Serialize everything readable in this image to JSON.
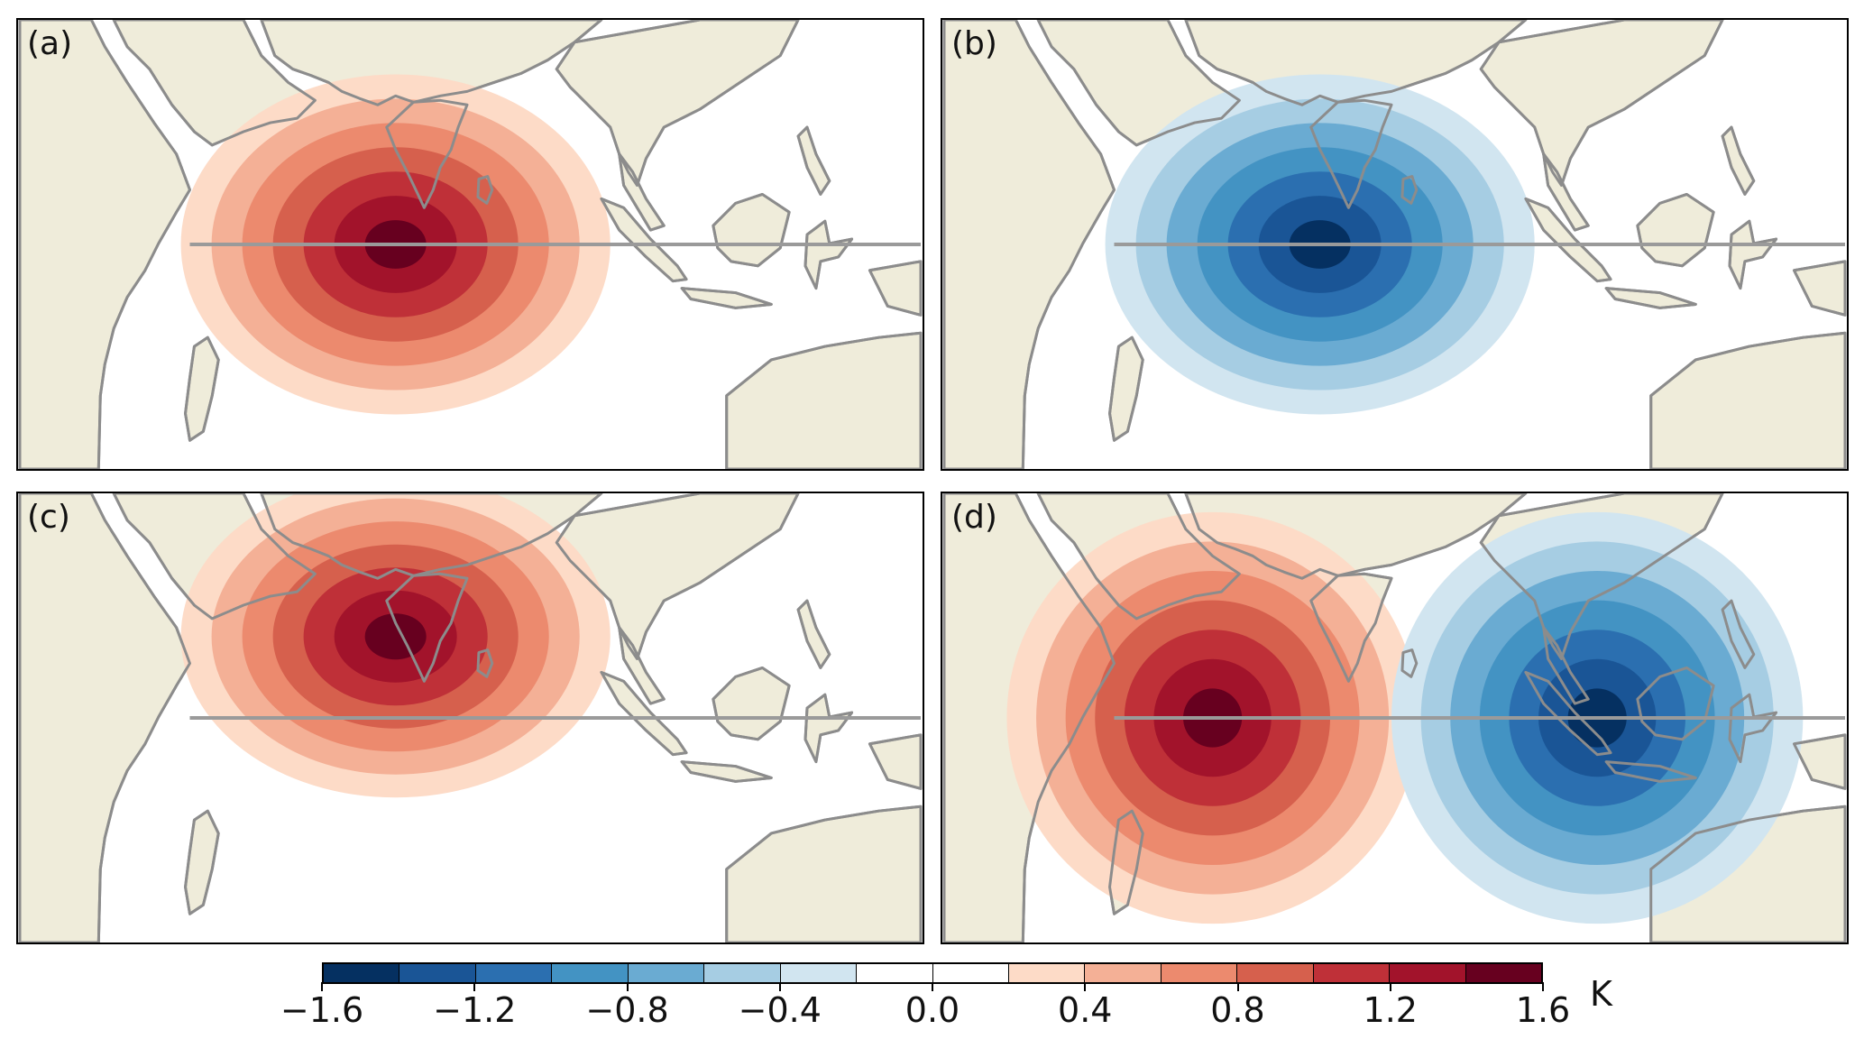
{
  "panels": [
    {
      "id": "a",
      "label": "(a)",
      "anomalies": [
        {
          "sign": "warm",
          "peak": 1.6
        }
      ]
    },
    {
      "id": "b",
      "label": "(b)",
      "anomalies": [
        {
          "sign": "cold",
          "peak": -1.6
        }
      ]
    },
    {
      "id": "c",
      "label": "(c)",
      "anomalies": [
        {
          "sign": "warm",
          "peak": 1.6
        }
      ]
    },
    {
      "id": "d",
      "label": "(d)",
      "anomalies": [
        {
          "sign": "warm",
          "peak": 1.6
        },
        {
          "sign": "cold",
          "peak": -1.6
        }
      ]
    }
  ],
  "colorbar": {
    "ticks": [
      "−1.6",
      "−1.2",
      "−0.8",
      "−0.4",
      "0.0",
      "0.4",
      "0.8",
      "1.2",
      "1.6"
    ],
    "unit": "K",
    "range": [
      -1.6,
      1.6
    ],
    "levels": 16,
    "colors": [
      "#053061",
      "#1a5596",
      "#2b6fb0",
      "#4393c3",
      "#6aabd2",
      "#a6cde3",
      "#d1e5f0",
      "#ffffff",
      "#ffffff",
      "#fddbc7",
      "#f4b096",
      "#ec8a6e",
      "#d6604d",
      "#bf3038",
      "#a2132b",
      "#67001f"
    ]
  },
  "map_colors": {
    "land": "#efecda",
    "coast": "#8c8c8c",
    "equator": "#9a9a9a",
    "ocean": "#ffffff"
  }
}
